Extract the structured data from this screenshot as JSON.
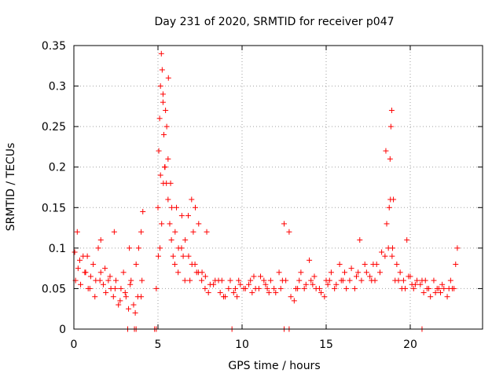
{
  "chart_data": {
    "type": "scatter",
    "title": "Day 231 of 2020, SRMTID for receiver p047",
    "xlabel": "GPS time / hours",
    "ylabel": "SRMTID / TECUs",
    "xlim": [
      0,
      24.3
    ],
    "ylim": [
      0,
      0.35
    ],
    "xticks": [
      0,
      5,
      10,
      15,
      20
    ],
    "xtick_labels": [
      "0",
      "5",
      "10",
      "15",
      "20"
    ],
    "yticks": [
      0,
      0.05,
      0.1,
      0.15,
      0.2,
      0.25,
      0.3,
      0.35
    ],
    "ytick_labels": [
      "0",
      "0.05",
      "0.1",
      "0.15",
      "0.2",
      "0.25",
      "0.3",
      "0.35"
    ],
    "grid": true,
    "marker": "+",
    "series_color": "#ff0000",
    "series": [
      {
        "name": "SRMTID",
        "x": [
          0.1,
          0.25,
          0.4,
          0.55,
          0.7,
          0.85,
          1.0,
          1.15,
          1.3,
          1.45,
          1.6,
          1.75,
          1.9,
          2.05,
          2.2,
          2.35,
          2.5,
          2.65,
          2.8,
          2.95,
          3.1,
          3.25,
          3.4,
          3.55,
          3.7,
          3.85,
          4.0,
          4.1,
          4.9,
          5.0,
          5.05,
          5.1,
          5.15,
          5.2,
          5.25,
          5.3,
          5.35,
          5.4,
          5.5,
          5.6,
          5.7,
          5.8,
          5.9,
          6.0,
          6.2,
          6.4,
          6.6,
          6.8,
          7.0,
          7.1,
          7.2,
          7.4,
          7.6,
          7.8,
          8.0,
          8.3,
          8.6,
          8.9,
          9.2,
          9.5,
          9.8,
          10.1,
          10.4,
          10.7,
          11.0,
          11.3,
          11.6,
          11.9,
          12.2,
          12.5,
          12.8,
          13.1,
          13.4,
          13.7,
          14.0,
          14.3,
          14.6,
          14.9,
          15.2,
          15.5,
          15.8,
          16.1,
          16.4,
          16.7,
          17.0,
          17.3,
          17.6,
          17.9,
          18.2,
          18.5,
          18.7,
          18.75,
          18.8,
          18.85,
          18.9,
          19.0,
          19.2,
          19.4,
          19.6,
          19.8,
          20.0,
          20.2,
          20.4,
          20.6,
          20.8,
          21.0,
          21.2,
          21.4,
          21.6,
          21.8,
          22.0,
          22.2,
          22.4,
          22.6,
          22.8,
          0.2,
          0.8,
          1.6,
          2.4,
          3.3,
          3.8,
          4.0,
          5.15,
          5.3,
          5.45,
          5.6,
          5.75,
          6.1,
          6.5,
          6.9,
          7.3,
          7.9,
          8.8,
          9.7,
          10.6,
          11.5,
          12.4,
          13.3,
          14.2,
          15.1,
          16.0,
          16.9,
          17.8,
          18.6,
          18.95,
          19.3,
          19.7,
          20.1,
          20.9,
          21.7,
          22.5,
          0.05,
          0.35,
          0.65,
          0.95,
          1.25,
          1.55,
          1.85,
          2.15,
          2.45,
          2.75,
          3.05,
          3.35,
          3.65,
          4.05,
          5.02,
          5.12,
          5.22,
          5.32,
          5.42,
          5.52,
          5.62,
          5.82,
          6.02,
          6.22,
          6.42,
          6.62,
          6.82,
          7.02,
          7.22,
          7.42,
          7.62,
          7.82,
          8.1,
          8.4,
          8.7,
          9.0,
          9.3,
          9.6,
          9.9,
          10.2,
          10.5,
          10.8,
          11.1,
          11.4,
          11.7,
          12.0,
          12.3,
          12.6,
          12.9,
          13.2,
          13.5,
          13.8,
          14.1,
          14.4,
          14.7,
          15.0,
          15.3,
          15.6,
          15.9,
          16.2,
          16.5,
          16.8,
          17.1,
          17.4,
          17.7,
          18.0,
          18.3,
          18.55,
          18.82,
          18.92,
          19.1,
          19.5,
          19.9,
          20.3,
          20.7,
          21.1,
          21.5,
          21.9,
          22.3,
          22.7,
          3.2,
          3.6,
          3.7,
          4.8,
          4.9,
          9.4,
          12.5,
          12.8,
          20.7
        ],
        "y": [
          0.06,
          0.075,
          0.055,
          0.09,
          0.07,
          0.05,
          0.065,
          0.08,
          0.06,
          0.1,
          0.07,
          0.055,
          0.045,
          0.06,
          0.05,
          0.04,
          0.06,
          0.03,
          0.05,
          0.07,
          0.04,
          0.025,
          0.06,
          0.03,
          0.08,
          0.1,
          0.12,
          0.145,
          0.05,
          0.15,
          0.22,
          0.26,
          0.3,
          0.34,
          0.32,
          0.28,
          0.24,
          0.2,
          0.18,
          0.16,
          0.13,
          0.11,
          0.09,
          0.08,
          0.07,
          0.1,
          0.06,
          0.14,
          0.16,
          0.12,
          0.08,
          0.07,
          0.06,
          0.05,
          0.045,
          0.055,
          0.06,
          0.04,
          0.05,
          0.045,
          0.06,
          0.05,
          0.055,
          0.065,
          0.05,
          0.06,
          0.045,
          0.05,
          0.07,
          0.13,
          0.12,
          0.035,
          0.06,
          0.05,
          0.085,
          0.065,
          0.05,
          0.04,
          0.06,
          0.05,
          0.08,
          0.07,
          0.06,
          0.05,
          0.11,
          0.08,
          0.065,
          0.06,
          0.07,
          0.09,
          0.1,
          0.15,
          0.21,
          0.25,
          0.27,
          0.16,
          0.08,
          0.07,
          0.06,
          0.11,
          0.065,
          0.05,
          0.06,
          0.055,
          0.045,
          0.05,
          0.04,
          0.06,
          0.05,
          0.045,
          0.05,
          0.04,
          0.06,
          0.05,
          0.1,
          0.12,
          0.09,
          0.11,
          0.12,
          0.1,
          0.04,
          0.04,
          0.19,
          0.29,
          0.27,
          0.21,
          0.18,
          0.15,
          0.09,
          0.06,
          0.07,
          0.12,
          0.06,
          0.04,
          0.045,
          0.05,
          0.06,
          0.05,
          0.055,
          0.055,
          0.06,
          0.07,
          0.08,
          0.13,
          0.1,
          0.06,
          0.05,
          0.055,
          0.06,
          0.05,
          0.05,
          0.095,
          0.085,
          0.07,
          0.05,
          0.04,
          0.06,
          0.075,
          0.065,
          0.05,
          0.035,
          0.045,
          0.055,
          0.02,
          0.06,
          0.09,
          0.1,
          0.13,
          0.18,
          0.2,
          0.25,
          0.31,
          0.15,
          0.12,
          0.1,
          0.14,
          0.11,
          0.09,
          0.08,
          0.15,
          0.13,
          0.07,
          0.065,
          0.055,
          0.06,
          0.045,
          0.04,
          0.06,
          0.05,
          0.055,
          0.05,
          0.06,
          0.05,
          0.065,
          0.055,
          0.06,
          0.045,
          0.05,
          0.06,
          0.04,
          0.05,
          0.07,
          0.055,
          0.06,
          0.05,
          0.045,
          0.06,
          0.07,
          0.055,
          0.06,
          0.05,
          0.075,
          0.065,
          0.06,
          0.07,
          0.06,
          0.08,
          0.095,
          0.22,
          0.16,
          0.09,
          0.06,
          0.05,
          0.065,
          0.055,
          0.06,
          0.05,
          0.045,
          0.055,
          0.05,
          0.08,
          0.0,
          0.0,
          0.0,
          0.0,
          0.0,
          0.0,
          0.0,
          0.0,
          0.0
        ]
      }
    ]
  }
}
